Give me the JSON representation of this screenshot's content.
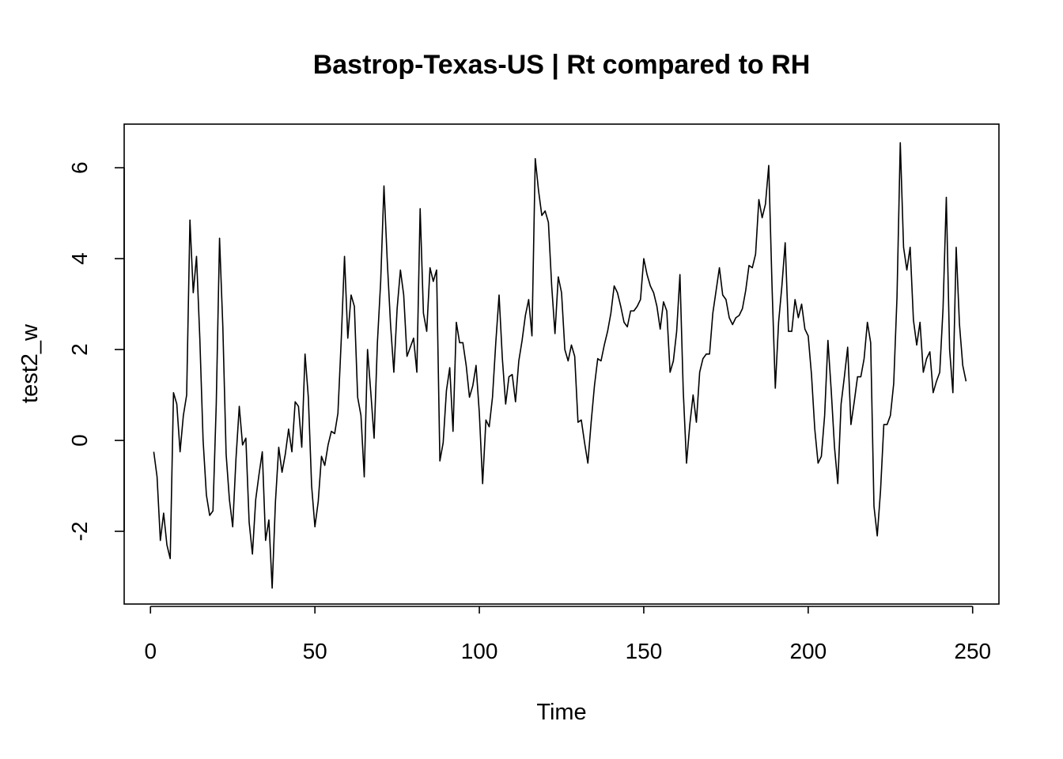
{
  "chart_data": {
    "type": "line",
    "title": "Bastrop-Texas-US | Rt compared to RH",
    "xlabel": "Time",
    "ylabel": "test2_w",
    "xlim": [
      -8,
      258
    ],
    "ylim": [
      -3.6,
      6.96
    ],
    "x_ticks": [
      0,
      50,
      100,
      150,
      200,
      250
    ],
    "y_ticks": [
      -2,
      0,
      2,
      4,
      6
    ],
    "grid": false,
    "legend": "none",
    "line_color": "#000000",
    "series": [
      {
        "x_start": 1,
        "values": [
          -0.25,
          -0.8,
          -2.2,
          -1.6,
          -2.3,
          -2.6,
          1.05,
          0.8,
          -0.25,
          0.55,
          1.0,
          4.85,
          3.25,
          4.05,
          2.25,
          0.0,
          -1.2,
          -1.65,
          -1.55,
          0.8,
          4.45,
          2.5,
          -0.3,
          -1.3,
          -1.9,
          -0.4,
          0.75,
          -0.1,
          0.05,
          -1.8,
          -2.5,
          -1.3,
          -0.75,
          -0.25,
          -2.2,
          -1.75,
          -3.25,
          -1.35,
          -0.15,
          -0.7,
          -0.3,
          0.25,
          -0.25,
          0.85,
          0.75,
          -0.15,
          1.9,
          0.95,
          -1.0,
          -1.9,
          -1.35,
          -0.35,
          -0.55,
          -0.1,
          0.2,
          0.15,
          0.6,
          2.2,
          4.05,
          2.25,
          3.2,
          2.95,
          0.95,
          0.55,
          -0.8,
          2.0,
          1.05,
          0.05,
          2.15,
          3.5,
          5.6,
          3.95,
          2.55,
          1.5,
          2.9,
          3.75,
          3.2,
          1.85,
          2.05,
          2.25,
          1.5,
          5.1,
          2.8,
          2.4,
          3.8,
          3.5,
          3.75,
          -0.45,
          -0.05,
          1.1,
          1.6,
          0.2,
          2.6,
          2.15,
          2.15,
          1.65,
          0.95,
          1.2,
          1.65,
          0.6,
          -0.95,
          0.45,
          0.3,
          0.95,
          2.15,
          3.2,
          1.8,
          0.8,
          1.4,
          1.45,
          0.85,
          1.75,
          2.2,
          2.75,
          3.1,
          2.3,
          6.2,
          5.5,
          4.95,
          5.05,
          4.8,
          3.4,
          2.35,
          3.6,
          3.25,
          2.0,
          1.75,
          2.1,
          1.85,
          0.4,
          0.45,
          -0.05,
          -0.5,
          0.4,
          1.2,
          1.8,
          1.75,
          2.1,
          2.4,
          2.8,
          3.4,
          3.25,
          2.95,
          2.6,
          2.5,
          2.85,
          2.85,
          2.95,
          3.1,
          4.0,
          3.65,
          3.4,
          3.25,
          2.95,
          2.45,
          3.05,
          2.85,
          1.5,
          1.75,
          2.4,
          3.65,
          1.1,
          -0.5,
          0.35,
          1.0,
          0.4,
          1.5,
          1.8,
          1.9,
          1.9,
          2.8,
          3.3,
          3.8,
          3.2,
          3.1,
          2.7,
          2.55,
          2.7,
          2.75,
          2.9,
          3.3,
          3.85,
          3.8,
          4.1,
          5.3,
          4.9,
          5.2,
          6.05,
          3.4,
          1.15,
          2.6,
          3.4,
          4.35,
          2.4,
          2.4,
          3.1,
          2.7,
          3.0,
          2.45,
          2.3,
          1.45,
          0.25,
          -0.5,
          -0.35,
          0.55,
          2.2,
          1.1,
          -0.15,
          -0.95,
          0.8,
          1.4,
          2.05,
          0.35,
          0.85,
          1.4,
          1.4,
          1.8,
          2.6,
          2.15,
          -1.45,
          -2.1,
          -1.1,
          0.35,
          0.35,
          0.55,
          1.25,
          3.15,
          6.55,
          4.25,
          3.75,
          4.25,
          2.65,
          2.1,
          2.6,
          1.5,
          1.8,
          1.95,
          1.05,
          1.3,
          1.5,
          2.9,
          5.35,
          2.0,
          1.05,
          4.25,
          2.55,
          1.65,
          1.3
        ]
      }
    ]
  }
}
